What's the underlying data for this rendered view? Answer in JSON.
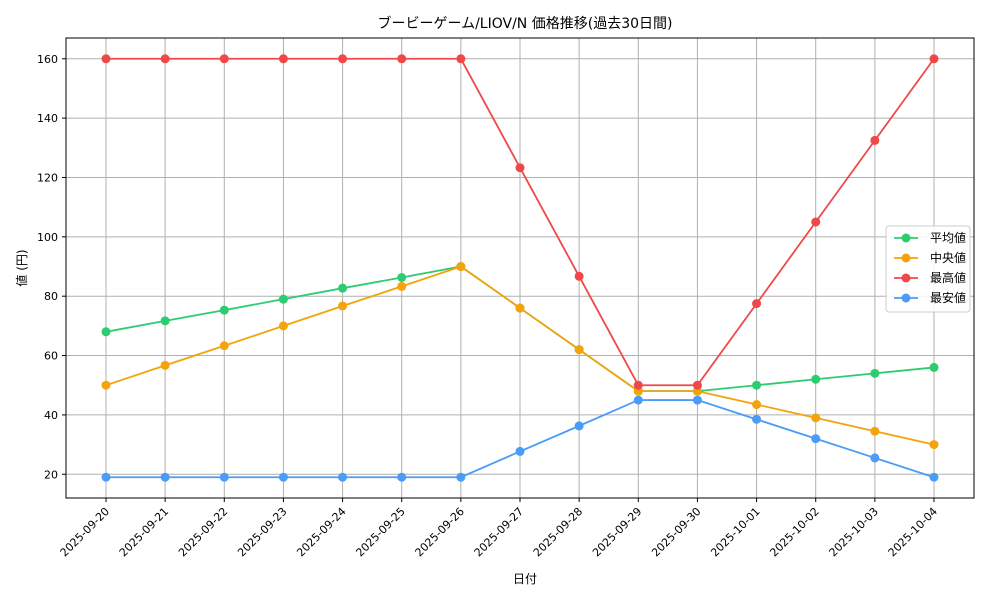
{
  "chart_data": {
    "type": "line",
    "title": "ブービーゲーム/LIOV/N 価格推移(過去30日間)",
    "xlabel": "日付",
    "ylabel": "値 (円)",
    "ylim": [
      12,
      167
    ],
    "yticks": [
      20,
      40,
      60,
      80,
      100,
      120,
      140,
      160
    ],
    "grid": true,
    "legend_position": "right",
    "categories": [
      "2025-09-20",
      "2025-09-21",
      "2025-09-22",
      "2025-09-23",
      "2025-09-24",
      "2025-09-25",
      "2025-09-26",
      "2025-09-27",
      "2025-09-28",
      "2025-09-29",
      "2025-09-30",
      "2025-10-01",
      "2025-10-02",
      "2025-10-03",
      "2025-10-04"
    ],
    "series": [
      {
        "name": "平均値",
        "color": "#2ecc71",
        "values": [
          68,
          71.7,
          75.3,
          79,
          82.7,
          86.3,
          90,
          76,
          62,
          48,
          48,
          50,
          52,
          54,
          56
        ]
      },
      {
        "name": "中央値",
        "color": "#f5a30a",
        "values": [
          50,
          56.7,
          63.3,
          70,
          76.7,
          83.3,
          90,
          76,
          62,
          48,
          48,
          43.5,
          39,
          34.5,
          30
        ]
      },
      {
        "name": "最高値",
        "color": "#f04848",
        "values": [
          160,
          160,
          160,
          160,
          160,
          160,
          160,
          123.3,
          86.7,
          50,
          50,
          77.5,
          105,
          132.5,
          160
        ]
      },
      {
        "name": "最安値",
        "color": "#4a9cf7",
        "values": [
          19,
          19,
          19,
          19,
          19,
          19,
          19,
          27.7,
          36.3,
          45,
          45,
          38.5,
          32,
          25.5,
          19
        ]
      }
    ]
  }
}
